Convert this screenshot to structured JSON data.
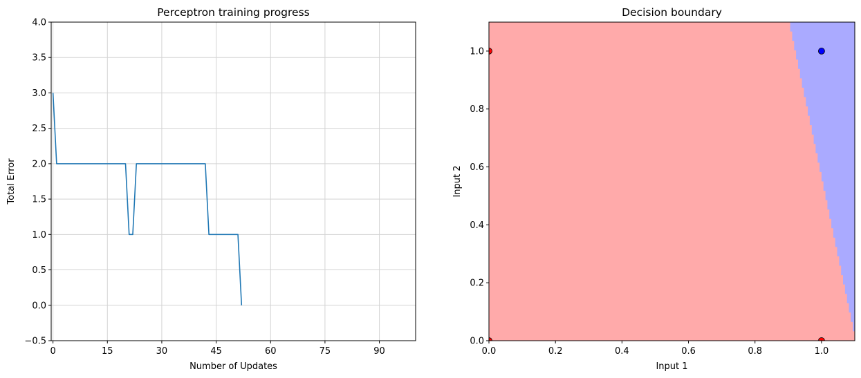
{
  "chart_data": [
    {
      "type": "line",
      "title": "Perceptron training progress",
      "xlabel": "Number of Updates",
      "ylabel": "Total Error",
      "xlim": [
        -0.5,
        100
      ],
      "ylim": [
        -0.5,
        4.0
      ],
      "xticks": [
        "0",
        "15",
        "30",
        "45",
        "60",
        "75",
        "90"
      ],
      "xtick_values": [
        0,
        15,
        30,
        45,
        60,
        75,
        90
      ],
      "yticks": [
        "−0.5",
        "0.0",
        "0.5",
        "1.0",
        "1.5",
        "2.0",
        "2.5",
        "3.0",
        "3.5",
        "4.0"
      ],
      "ytick_values": [
        -0.5,
        0,
        0.5,
        1.0,
        1.5,
        2.0,
        2.5,
        3.0,
        3.5,
        4.0
      ],
      "grid": true,
      "color": "#1f77b4",
      "series": [
        {
          "x": [
            0,
            1,
            20,
            21,
            22,
            23,
            42,
            43,
            51,
            52
          ],
          "y": [
            3,
            2,
            2,
            1,
            1,
            2,
            2,
            1,
            1,
            0
          ]
        }
      ]
    },
    {
      "type": "scatter",
      "title": "Decision boundary",
      "xlabel": "Input 1",
      "ylabel": "Input 2",
      "xlim": [
        0,
        1.1
      ],
      "ylim": [
        0,
        1.1
      ],
      "xticks": [
        "0.0",
        "0.2",
        "0.4",
        "0.6",
        "0.8",
        "1.0"
      ],
      "xtick_values": [
        0,
        0.2,
        0.4,
        0.6,
        0.8,
        1.0
      ],
      "yticks": [
        "0.0",
        "0.2",
        "0.4",
        "0.6",
        "0.8",
        "1.0"
      ],
      "ytick_values": [
        0,
        0.2,
        0.4,
        0.6,
        0.8,
        1.0
      ],
      "grid": false,
      "region_colors": {
        "class_0": "#ffaaaa",
        "class_1": "#aaaaff"
      },
      "boundary": [
        [
          1.1,
          0.0
        ],
        [
          0.9,
          1.1
        ]
      ],
      "points": [
        {
          "x": 0,
          "y": 0,
          "class": 0,
          "color": "#ff0000"
        },
        {
          "x": 0,
          "y": 1,
          "class": 0,
          "color": "#ff0000"
        },
        {
          "x": 1,
          "y": 0,
          "class": 0,
          "color": "#ff0000"
        },
        {
          "x": 1,
          "y": 1,
          "class": 1,
          "color": "#0000ff"
        }
      ]
    }
  ]
}
